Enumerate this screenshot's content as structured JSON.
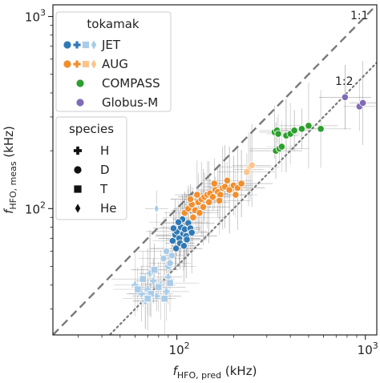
{
  "chart_data": {
    "type": "scatter",
    "x_scale": "log",
    "y_scale": "log",
    "xlim": [
      22,
      1150
    ],
    "ylim": [
      22,
      1150
    ],
    "xlabel_main": "f",
    "xlabel_sub": "HFO, pred",
    "xlabel_unit": " (kHz)",
    "ylabel_main": "f",
    "ylabel_sub": "HFO, meas",
    "ylabel_unit": " (kHz)",
    "x_ticks": [
      {
        "value": 100,
        "base": "10",
        "exp": "2"
      },
      {
        "value": 1000,
        "base": "10",
        "exp": "3"
      }
    ],
    "y_ticks": [
      {
        "value": 100,
        "base": "10",
        "exp": "2"
      },
      {
        "value": 1000,
        "base": "10",
        "exp": "3"
      }
    ],
    "reference_lines": [
      {
        "label": "1:1",
        "ratio": 1.0,
        "style": "dashed"
      },
      {
        "label": "1:2",
        "ratio": 0.5,
        "style": "dotted"
      }
    ],
    "legend_tokamak": {
      "title": "tokamak",
      "entries": [
        {
          "name": "JET",
          "color": "#2f79b5"
        },
        {
          "name": "AUG",
          "color": "#f28e2b"
        },
        {
          "name": "COMPASS",
          "color": "#2ca02c"
        },
        {
          "name": "Globus-M",
          "color": "#7f6bb8"
        }
      ]
    },
    "legend_species": {
      "title": "species",
      "entries": [
        {
          "name": "H",
          "marker": "plus"
        },
        {
          "name": "D",
          "marker": "circle"
        },
        {
          "name": "T",
          "marker": "square"
        },
        {
          "name": "He",
          "marker": "diamond"
        }
      ]
    },
    "colors": {
      "JET": "#2f79b5",
      "JET_light": "#a9cce8",
      "AUG": "#f28e2b",
      "AUG_light": "#f9c58f",
      "COMPASS": "#2ca02c",
      "Globus-M": "#7f6bb8",
      "errorbar": "#555555"
    },
    "series": [
      {
        "name": "JET",
        "species": "H",
        "color_key": "JET_light",
        "points": [
          [
            60,
            40
          ],
          [
            65,
            36
          ],
          [
            70,
            38
          ],
          [
            75,
            42
          ],
          [
            78,
            35
          ],
          [
            82,
            40
          ],
          [
            88,
            37
          ],
          [
            72,
            46
          ],
          [
            68,
            33
          ],
          [
            90,
            44
          ]
        ]
      },
      {
        "name": "JET",
        "species": "T",
        "color_key": "JET_light",
        "points": [
          [
            62,
            38
          ],
          [
            66,
            43
          ],
          [
            73,
            36
          ],
          [
            80,
            39
          ],
          [
            86,
            34
          ],
          [
            92,
            41
          ],
          [
            76,
            48
          ],
          [
            70,
            34
          ]
        ]
      },
      {
        "name": "JET",
        "species": "D",
        "color_key": "JET",
        "points": [
          [
            95,
            68
          ],
          [
            98,
            73
          ],
          [
            100,
            76
          ],
          [
            103,
            70
          ],
          [
            105,
            80
          ],
          [
            108,
            74
          ],
          [
            110,
            78
          ],
          [
            112,
            72
          ],
          [
            115,
            84
          ],
          [
            118,
            79
          ],
          [
            104,
            66
          ],
          [
            99,
            62
          ],
          [
            107,
            88
          ],
          [
            113,
            69
          ],
          [
            120,
            75
          ],
          [
            96,
            79
          ],
          [
            102,
            85
          ],
          [
            109,
            64
          ]
        ]
      },
      {
        "name": "JET",
        "species": "D",
        "color_key": "JET_light",
        "points": [
          [
            85,
            55
          ],
          [
            90,
            50
          ],
          [
            94,
            57
          ],
          [
            88,
            60
          ],
          [
            92,
            52
          ]
        ]
      },
      {
        "name": "AUG",
        "species": "D",
        "color_key": "AUG",
        "points": [
          [
            110,
            95
          ],
          [
            115,
            100
          ],
          [
            120,
            105
          ],
          [
            125,
            98
          ],
          [
            130,
            108
          ],
          [
            135,
            112
          ],
          [
            140,
            115
          ],
          [
            145,
            118
          ],
          [
            150,
            120
          ],
          [
            155,
            115
          ],
          [
            160,
            125
          ],
          [
            165,
            122
          ],
          [
            170,
            118
          ],
          [
            175,
            128
          ],
          [
            180,
            130
          ],
          [
            190,
            125
          ],
          [
            200,
            132
          ],
          [
            210,
            128
          ],
          [
            220,
            135
          ],
          [
            118,
            112
          ],
          [
            128,
            118
          ],
          [
            138,
            102
          ],
          [
            148,
            108
          ],
          [
            158,
            135
          ],
          [
            168,
            110
          ],
          [
            185,
            140
          ],
          [
            205,
            118
          ],
          [
            122,
            90
          ],
          [
            132,
            95
          ]
        ]
      },
      {
        "name": "AUG",
        "species": "D",
        "color_key": "AUG_light",
        "points": [
          [
            240,
            160
          ],
          [
            245,
            165
          ],
          [
            235,
            155
          ],
          [
            250,
            168
          ]
        ]
      },
      {
        "name": "AUG",
        "species": "He",
        "color_key": "JET_light",
        "points": [
          [
            78,
            100
          ]
        ]
      },
      {
        "name": "COMPASS",
        "species": "D",
        "color_key": "COMPASS",
        "points": [
          [
            330,
            250
          ],
          [
            340,
            255
          ],
          [
            335,
            200
          ],
          [
            350,
            205
          ],
          [
            360,
            210
          ],
          [
            380,
            240
          ],
          [
            400,
            245
          ],
          [
            420,
            255
          ],
          [
            460,
            260
          ],
          [
            500,
            270
          ],
          [
            580,
            260
          ],
          [
            345,
            245
          ]
        ]
      },
      {
        "name": "Globus-M",
        "species": "D",
        "color_key": "Globus-M",
        "points": [
          [
            780,
            380
          ],
          [
            930,
            340
          ],
          [
            970,
            355
          ]
        ]
      }
    ]
  }
}
